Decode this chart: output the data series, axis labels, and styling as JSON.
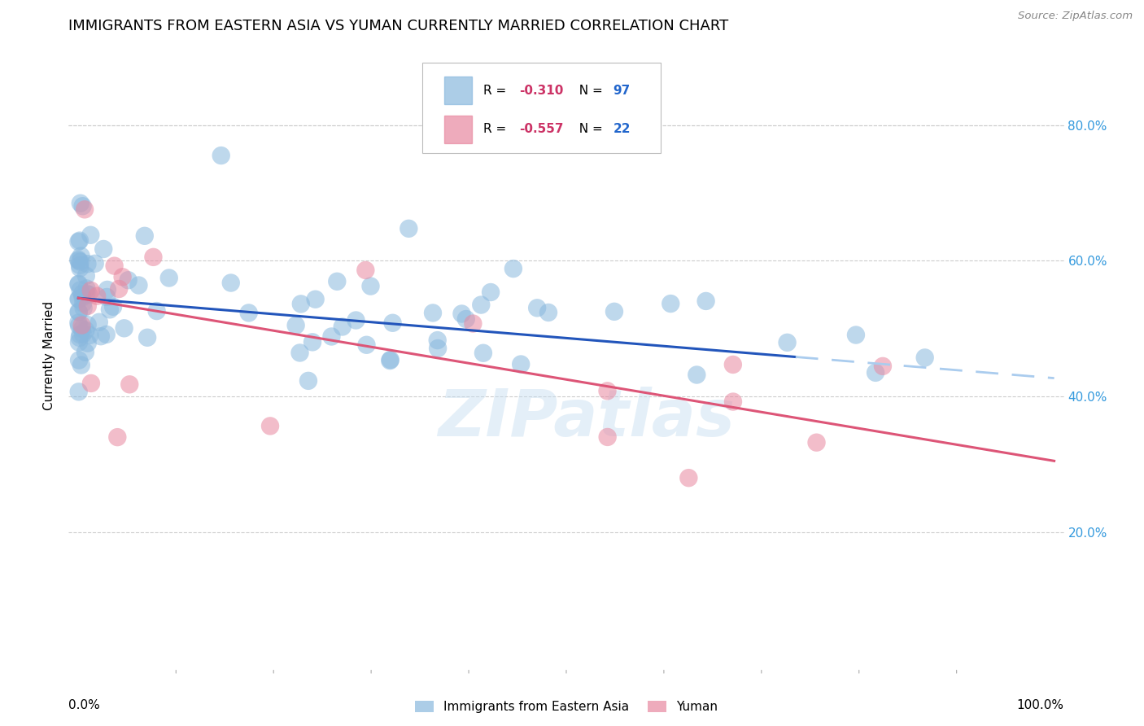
{
  "title": "IMMIGRANTS FROM EASTERN ASIA VS YUMAN CURRENTLY MARRIED CORRELATION CHART",
  "source": "Source: ZipAtlas.com",
  "ylabel": "Currently Married",
  "legend_entries": [
    {
      "label": "Immigrants from Eastern Asia",
      "color_scatter": "#89b8de",
      "color_line": "#2255bb",
      "color_dashed": "#aaccee",
      "R": "-0.310",
      "N": "97"
    },
    {
      "label": "Yuman",
      "color_scatter": "#e888a0",
      "color_line": "#dd5577",
      "R": "-0.557",
      "N": "22"
    }
  ],
  "watermark": "ZIPatlas",
  "background_color": "#ffffff",
  "yticks": [
    "20.0%",
    "40.0%",
    "60.0%",
    "80.0%"
  ],
  "ytick_vals": [
    0.2,
    0.4,
    0.6,
    0.8
  ],
  "grid_color": "#cccccc",
  "right_axis_color": "#3399dd",
  "title_fontsize": 13,
  "axis_label_fontsize": 11,
  "tick_fontsize": 11,
  "R_color": "#cc3366",
  "N_color": "#2266cc"
}
